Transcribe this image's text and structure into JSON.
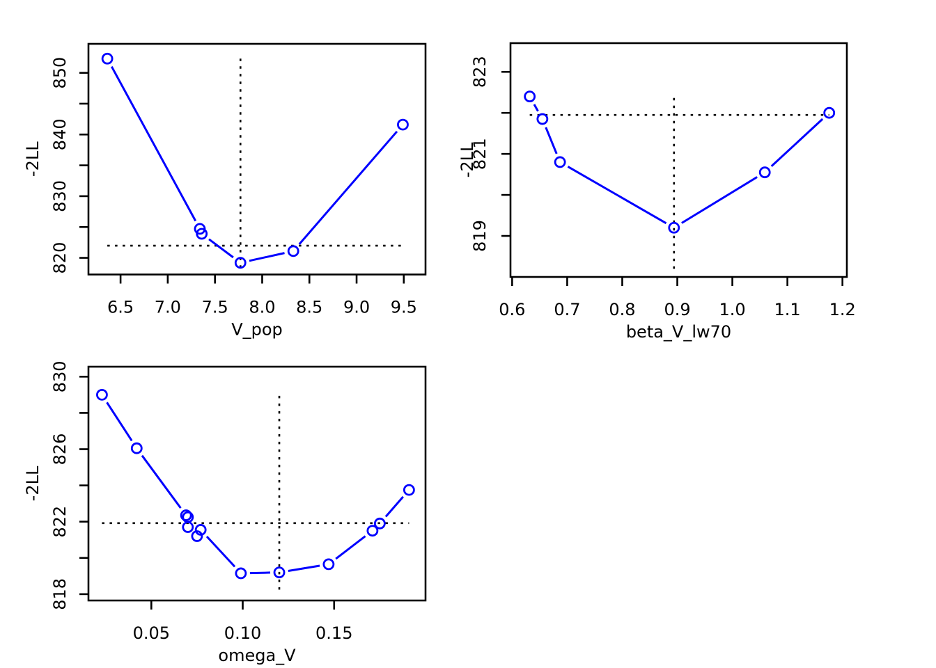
{
  "figure": {
    "background": "#ffffff",
    "series_color": "#0000FF",
    "ref_line_color": "#000000",
    "axis_color": "#000000"
  },
  "chart_data": [
    {
      "type": "line",
      "name": "profile-v-pop",
      "title": "",
      "xlabel": "V_pop",
      "ylabel": "-2LL",
      "x": [
        6.36,
        7.34,
        7.36,
        7.77,
        8.33,
        9.49
      ],
      "y": [
        852.3,
        824.7,
        823.9,
        819.2,
        821.1,
        841.6
      ],
      "xlim": [
        6.16,
        9.73
      ],
      "ylim": [
        817.3,
        854.7
      ],
      "xticks": {
        "values": [
          6.5,
          7.0,
          7.5,
          8.0,
          8.5,
          9.0,
          9.5
        ],
        "labels": [
          "6.5",
          "7.0",
          "7.5",
          "8.0",
          "8.5",
          "9.0",
          "9.5"
        ]
      },
      "yticks": {
        "values": [
          820,
          825,
          830,
          835,
          840,
          845,
          850
        ],
        "labels": [
          "820",
          "",
          "830",
          "",
          "840",
          "",
          "850"
        ]
      },
      "hline": {
        "y": 821.97,
        "x0": 6.36,
        "x1": 9.49
      },
      "vline": {
        "x": 7.77,
        "y0": 818.4,
        "y1": 852.3
      },
      "marker": "open-circle",
      "line_style": "solid",
      "ref_style": "dotted",
      "grid": false,
      "legend": null
    },
    {
      "type": "line",
      "name": "profile-beta-v-lw70",
      "title": "",
      "xlabel": "beta_V_lw70",
      "ylabel": "-2LL",
      "x": [
        0.632,
        0.655,
        0.687,
        0.894,
        1.059,
        1.176
      ],
      "y": [
        822.4,
        821.85,
        820.8,
        819.2,
        820.55,
        822.0
      ],
      "xlim": [
        0.597,
        1.208
      ],
      "ylim": [
        818.0,
        823.7
      ],
      "xticks": {
        "values": [
          0.6,
          0.7,
          0.8,
          0.9,
          1.0,
          1.1,
          1.2
        ],
        "labels": [
          "0.6",
          "0.7",
          "0.8",
          "0.9",
          "1.0",
          "1.1",
          "1.2"
        ]
      },
      "yticks": {
        "values": [
          819,
          820,
          821,
          822,
          823
        ],
        "labels": [
          "819",
          "",
          "821",
          "",
          "823"
        ]
      },
      "hline": {
        "y": 821.95,
        "x0": 0.632,
        "x1": 1.176
      },
      "vline": {
        "x": 0.894,
        "y0": 818.2,
        "y1": 822.4
      },
      "marker": "open-circle",
      "line_style": "solid",
      "ref_style": "dotted",
      "grid": false,
      "legend": null
    },
    {
      "type": "line",
      "name": "profile-omega-v",
      "title": "",
      "xlabel": "omega_V",
      "ylabel": "-2LL",
      "x": [
        0.023,
        0.042,
        0.069,
        0.07,
        0.07,
        0.075,
        0.077,
        0.099,
        0.12,
        0.147,
        0.171,
        0.175,
        0.191
      ],
      "y": [
        829.0,
        826.05,
        822.35,
        822.25,
        821.7,
        821.2,
        821.55,
        819.15,
        819.2,
        819.65,
        821.5,
        821.9,
        823.75
      ],
      "xlim": [
        0.0156,
        0.2
      ],
      "ylim": [
        817.65,
        830.55
      ],
      "xticks": {
        "values": [
          0.05,
          0.1,
          0.15
        ],
        "labels": [
          "0.05",
          "0.10",
          "0.15"
        ]
      },
      "yticks": {
        "values": [
          818,
          820,
          822,
          824,
          826,
          828,
          830
        ],
        "labels": [
          "818",
          "",
          "822",
          "",
          "826",
          "",
          "830"
        ]
      },
      "hline": {
        "y": 821.92,
        "x0": 0.023,
        "x1": 0.191
      },
      "vline": {
        "x": 0.12,
        "y0": 818.25,
        "y1": 829.0
      },
      "marker": "open-circle",
      "line_style": "solid",
      "ref_style": "dotted",
      "grid": false,
      "legend": null
    }
  ]
}
